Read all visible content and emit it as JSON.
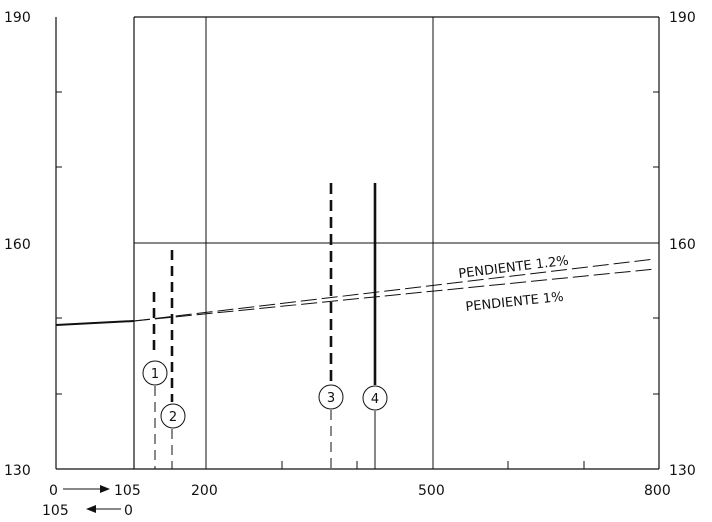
{
  "diagram": {
    "y_axis": {
      "min": 130,
      "max": 190,
      "ticks": [
        130,
        160,
        190
      ]
    },
    "x_axis": {
      "tick_labels": [
        "105",
        "200",
        "500",
        "800"
      ],
      "start_label": "0",
      "end_label_bottom": "0",
      "start_label_bottom": "105"
    },
    "annotations": {
      "slope_upper": "PENDIENTE 1.2%",
      "slope_lower": "PENDIENTE 1%"
    },
    "markers": [
      {
        "id": "1"
      },
      {
        "id": "2"
      },
      {
        "id": "3"
      },
      {
        "id": "4"
      }
    ]
  }
}
